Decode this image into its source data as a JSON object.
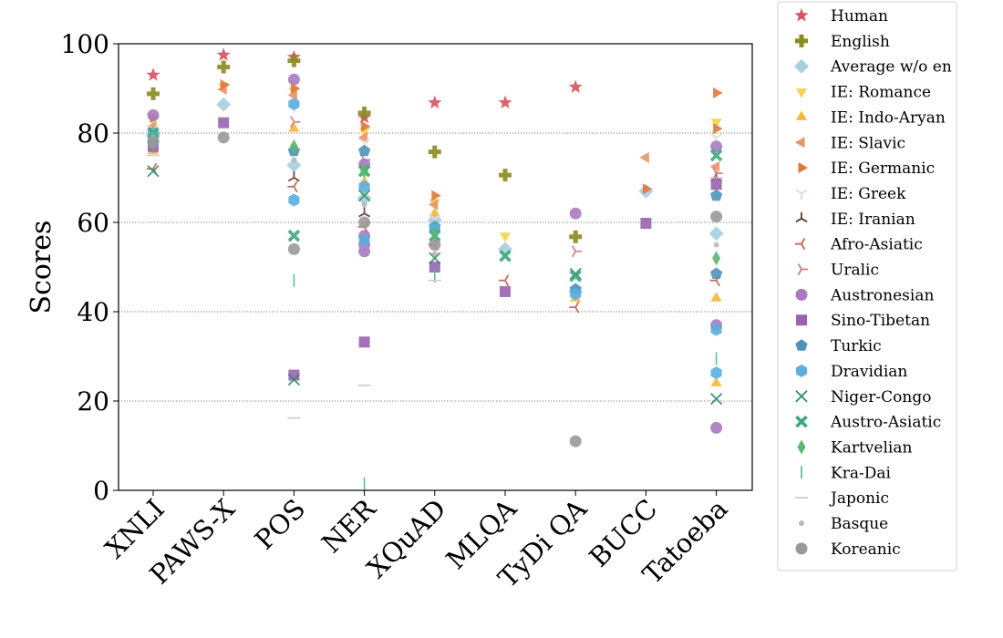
{
  "chart_data": {
    "type": "scatter",
    "title": "",
    "xlabel": "",
    "ylabel": "Scores",
    "ylim": [
      0,
      100
    ],
    "yticks": [
      "0",
      "20",
      "40",
      "60",
      "80",
      "100"
    ],
    "grid": "horizontal dotted",
    "legend_placement": "right",
    "categories": [
      "XNLI",
      "PAWS-X",
      "POS",
      "NER",
      "XQuAD",
      "MLQA",
      "TyDi QA",
      "BUCC",
      "Tatoeba"
    ],
    "series": [
      {
        "name": "Human",
        "marker": "star",
        "color": "#d9525e",
        "points": [
          [
            "XNLI",
            93
          ],
          [
            "PAWS-X",
            97.5
          ],
          [
            "POS",
            97
          ],
          [
            "NER",
            83.5
          ],
          [
            "XQuAD",
            86.8
          ],
          [
            "MLQA",
            86.8
          ],
          [
            "TyDi QA",
            90.3
          ]
        ]
      },
      {
        "name": "English",
        "marker": "plus",
        "color": "#8a8a1e",
        "points": [
          [
            "XNLI",
            88.8
          ],
          [
            "PAWS-X",
            94.8
          ],
          [
            "POS",
            96.2
          ],
          [
            "NER",
            84.5
          ],
          [
            "XQuAD",
            75.8
          ],
          [
            "MLQA",
            70.6
          ],
          [
            "TyDi QA",
            56.8
          ]
        ]
      },
      {
        "name": "Average w/o en",
        "marker": "diamond",
        "color": "#a8cfe0",
        "points": [
          [
            "XNLI",
            79.5
          ],
          [
            "PAWS-X",
            86.4
          ],
          [
            "POS",
            72.8
          ],
          [
            "NER",
            65.4
          ],
          [
            "XQuAD",
            60.5
          ],
          [
            "MLQA",
            54.0
          ],
          [
            "TyDi QA",
            44.5
          ],
          [
            "BUCC",
            67.0
          ],
          [
            "Tatoeba",
            57.5
          ]
        ]
      },
      {
        "name": "IE: Romance",
        "marker": "triangle-down",
        "color": "#f3d250",
        "points": [
          [
            "XNLI",
            83
          ],
          [
            "PAWS-X",
            90.5
          ],
          [
            "POS",
            89.5
          ],
          [
            "NER",
            80.5
          ],
          [
            "XQuAD",
            64.5
          ],
          [
            "MLQA",
            57.0
          ],
          [
            "Tatoeba",
            82.5
          ]
        ]
      },
      {
        "name": "IE: Indo-Aryan",
        "marker": "triangle-up",
        "color": "#f6b73c",
        "points": [
          [
            "XNLI",
            76
          ],
          [
            "POS",
            81
          ],
          [
            "NER",
            69
          ],
          [
            "XQuAD",
            62
          ],
          [
            "TyDi QA",
            43
          ],
          [
            "Tatoeba",
            43
          ],
          [
            "Tatoeba",
            24
          ]
        ]
      },
      {
        "name": "IE: Slavic",
        "marker": "triangle-left",
        "color": "#e8956a",
        "points": [
          [
            "XNLI",
            81.5
          ],
          [
            "PAWS-X",
            89.8
          ],
          [
            "POS",
            88.5
          ],
          [
            "NER",
            79.0
          ],
          [
            "XQuAD",
            64.0
          ],
          [
            "BUCC",
            74.5
          ],
          [
            "Tatoeba",
            72.5
          ]
        ]
      },
      {
        "name": "IE: Germanic",
        "marker": "triangle-right",
        "color": "#e0783c",
        "points": [
          [
            "XNLI",
            83.5
          ],
          [
            "PAWS-X",
            90.8
          ],
          [
            "POS",
            90.0
          ],
          [
            "NER",
            81.5
          ],
          [
            "XQuAD",
            66.0
          ],
          [
            "BUCC",
            67.5
          ],
          [
            "Tatoeba",
            89.0
          ],
          [
            "Tatoeba",
            81.0
          ]
        ]
      },
      {
        "name": "IE: Greek",
        "marker": "tri-down",
        "color": "#e6d9c8",
        "points": [
          [
            "XNLI",
            81
          ],
          [
            "POS",
            86
          ],
          [
            "NER",
            78
          ],
          [
            "XQuAD",
            61
          ],
          [
            "Tatoeba",
            79
          ]
        ]
      },
      {
        "name": "IE: Iranian",
        "marker": "tri-up",
        "color": "#5a3a28",
        "points": [
          [
            "XNLI",
            79
          ],
          [
            "POS",
            70
          ],
          [
            "NER",
            62
          ],
          [
            "Tatoeba",
            70
          ]
        ]
      },
      {
        "name": "Afro-Asiatic",
        "marker": "tri-left",
        "color": "#c0604e",
        "points": [
          [
            "XNLI",
            72
          ],
          [
            "POS",
            68
          ],
          [
            "NER",
            59
          ],
          [
            "XQuAD",
            55
          ],
          [
            "MLQA",
            47
          ],
          [
            "TyDi QA",
            41
          ],
          [
            "Tatoeba",
            47
          ]
        ]
      },
      {
        "name": "Uralic",
        "marker": "tri-right",
        "color": "#d07a7a",
        "points": [
          [
            "XNLI",
            80
          ],
          [
            "POS",
            82.5
          ],
          [
            "NER",
            74
          ],
          [
            "TyDi QA",
            53.5
          ],
          [
            "Tatoeba",
            71
          ]
        ]
      },
      {
        "name": "Austronesian",
        "marker": "circle",
        "color": "#a87bbf",
        "points": [
          [
            "XNLI",
            84
          ],
          [
            "POS",
            92
          ],
          [
            "NER",
            73
          ],
          [
            "NER",
            57
          ],
          [
            "NER",
            55
          ],
          [
            "NER",
            53.5
          ],
          [
            "TyDi QA",
            62
          ],
          [
            "Tatoeba",
            77
          ],
          [
            "Tatoeba",
            37
          ],
          [
            "Tatoeba",
            14
          ]
        ]
      },
      {
        "name": "Sino-Tibetan",
        "marker": "square",
        "color": "#9a62b0",
        "points": [
          [
            "XNLI",
            77
          ],
          [
            "PAWS-X",
            82.3
          ],
          [
            "POS",
            25.8
          ],
          [
            "NER",
            33.2
          ],
          [
            "XQuAD",
            50
          ],
          [
            "MLQA",
            44.5
          ],
          [
            "BUCC",
            59.8
          ],
          [
            "Tatoeba",
            68.5
          ]
        ]
      },
      {
        "name": "Turkic",
        "marker": "pentagon",
        "color": "#4f93b8",
        "points": [
          [
            "XNLI",
            78
          ],
          [
            "POS",
            76
          ],
          [
            "NER",
            76
          ],
          [
            "XQuAD",
            59
          ],
          [
            "TyDi QA",
            45
          ],
          [
            "Tatoeba",
            66
          ],
          [
            "Tatoeba",
            48.5
          ]
        ]
      },
      {
        "name": "Dravidian",
        "marker": "hexagon",
        "color": "#5aaee0",
        "points": [
          [
            "XNLI",
            80
          ],
          [
            "POS",
            86.5
          ],
          [
            "POS",
            65
          ],
          [
            "NER",
            68
          ],
          [
            "NER",
            56
          ],
          [
            "XQuAD",
            58.5
          ],
          [
            "TyDi QA",
            44
          ],
          [
            "Tatoeba",
            36
          ],
          [
            "Tatoeba",
            26.3
          ]
        ]
      },
      {
        "name": "Niger-Congo",
        "marker": "x",
        "color": "#2f8a6a",
        "points": [
          [
            "XNLI",
            71.5
          ],
          [
            "POS",
            24.8
          ],
          [
            "NER",
            66
          ],
          [
            "XQuAD",
            52
          ],
          [
            "TyDi QA",
            48.5
          ],
          [
            "Tatoeba",
            20.5
          ]
        ]
      },
      {
        "name": "Austro-Asiatic",
        "marker": "x-thick",
        "color": "#3aa87a",
        "points": [
          [
            "XNLI",
            80
          ],
          [
            "POS",
            57
          ],
          [
            "NER",
            71.5
          ],
          [
            "XQuAD",
            57
          ],
          [
            "MLQA",
            52.5
          ],
          [
            "TyDi QA",
            48
          ],
          [
            "Tatoeba",
            75
          ]
        ]
      },
      {
        "name": "Kartvelian",
        "marker": "thin-diamond",
        "color": "#5ab870",
        "points": [
          [
            "XNLI",
            79
          ],
          [
            "POS",
            77
          ],
          [
            "NER",
            71.5
          ],
          [
            "XQuAD",
            57.5
          ],
          [
            "Tatoeba",
            52
          ]
        ]
      },
      {
        "name": "Kra-Dai",
        "marker": "vline",
        "color": "#3fbf8a",
        "points": [
          [
            "XNLI",
            77
          ],
          [
            "POS",
            47
          ],
          [
            "NER",
            1.5
          ],
          [
            "XQuAD",
            48
          ],
          [
            "Tatoeba",
            29.5
          ]
        ]
      },
      {
        "name": "Japonic",
        "marker": "hline",
        "color": "#c8c0d8",
        "points": [
          [
            "XNLI",
            75
          ],
          [
            "POS",
            16.2
          ],
          [
            "NER",
            23.5
          ],
          [
            "XQuAD",
            47
          ],
          [
            "Tatoeba",
            70
          ]
        ]
      },
      {
        "name": "Basque",
        "marker": "point",
        "color": "#b8b8b8",
        "points": [
          [
            "XNLI",
            79
          ],
          [
            "POS",
            74
          ],
          [
            "NER",
            64
          ],
          [
            "XQuAD",
            53
          ],
          [
            "Tatoeba",
            55
          ]
        ]
      },
      {
        "name": "Koreanic",
        "marker": "circle",
        "color": "#999999",
        "points": [
          [
            "XNLI",
            78
          ],
          [
            "PAWS-X",
            79
          ],
          [
            "POS",
            54
          ],
          [
            "NER",
            60
          ],
          [
            "XQuAD",
            55
          ],
          [
            "TyDi QA",
            11
          ],
          [
            "Tatoeba",
            61.3
          ]
        ]
      }
    ]
  }
}
